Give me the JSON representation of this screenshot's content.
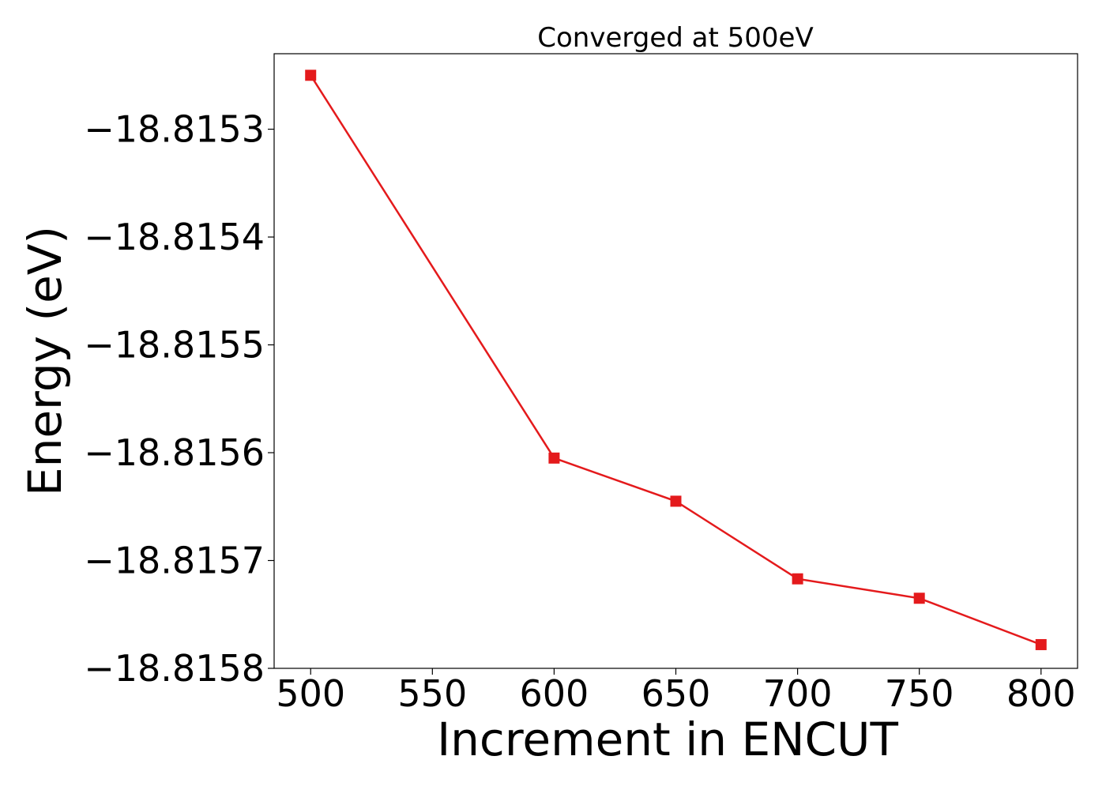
{
  "chart_data": {
    "type": "line",
    "title": "Converged at 500eV",
    "xlabel": "Increment in ENCUT",
    "ylabel": "Energy (eV)",
    "x": [
      500,
      600,
      650,
      700,
      750,
      800
    ],
    "series": [
      {
        "values": [
          -18.81525,
          -18.815605,
          -18.815645,
          -18.815717,
          -18.815735,
          -18.815778
        ],
        "color": "#e41a1c",
        "marker": "square"
      }
    ],
    "xticks": [
      500,
      550,
      600,
      650,
      700,
      750,
      800
    ],
    "xtick_labels": [
      "500",
      "550",
      "600",
      "650",
      "700",
      "750",
      "800"
    ],
    "yticks": [
      -18.8153,
      -18.8154,
      -18.8155,
      -18.8156,
      -18.8157,
      -18.8158
    ],
    "ytick_labels": [
      "−18.8153",
      "−18.8154",
      "−18.8155",
      "−18.8156",
      "−18.8157",
      "−18.8158"
    ],
    "xlim": [
      485,
      815
    ],
    "ylim": [
      -18.8158,
      -18.81523
    ],
    "grid": false,
    "legend": "none"
  }
}
